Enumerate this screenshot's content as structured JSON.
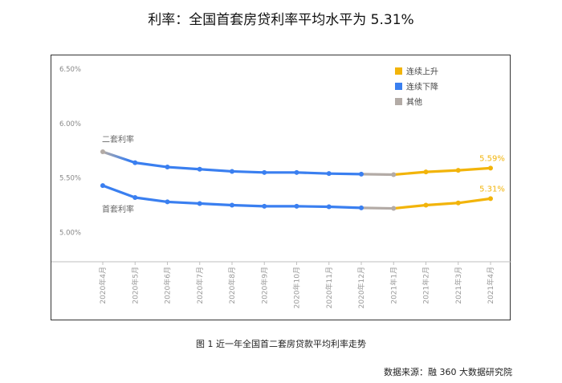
{
  "header": {
    "title": "利率：全国首套房贷利率平均水平为 5.31%"
  },
  "caption": "图 1  近一年全国首二套房贷款平均利率走势",
  "source": "数据来源：融 360 大数据研究院",
  "colors": {
    "rising": "#f2b40a",
    "falling": "#3a7ff0",
    "other": "#b3aba6"
  },
  "chart_data": {
    "type": "line",
    "title": "利率：全国首套房贷利率平均水平为 5.31%",
    "categories": [
      "2020年4月",
      "2020年5月",
      "2020年6月",
      "2020年7月",
      "2020年8月",
      "2020年9月",
      "2020年10月",
      "2020年11月",
      "2020年12月",
      "2021年1月",
      "2021年2月",
      "2021年3月",
      "2021年4月"
    ],
    "y_ticks": [
      "6.50%",
      "6.00%",
      "5.50%",
      "5.00%"
    ],
    "ylim": [
      4.73,
      6.5
    ],
    "series": [
      {
        "name": "二套利率",
        "values": [
          5.74,
          5.64,
          5.6,
          5.58,
          5.56,
          5.55,
          5.55,
          5.54,
          5.535,
          5.53,
          5.555,
          5.57,
          5.59
        ],
        "end_label": "5.59%"
      },
      {
        "name": "首套利率",
        "values": [
          5.43,
          5.32,
          5.28,
          5.265,
          5.25,
          5.24,
          5.24,
          5.235,
          5.225,
          5.22,
          5.25,
          5.27,
          5.31
        ],
        "end_label": "5.31%"
      }
    ],
    "segment_status": [
      "falling",
      "falling",
      "falling",
      "falling",
      "falling",
      "falling",
      "falling",
      "falling",
      "other",
      "rising",
      "rising",
      "rising"
    ],
    "legend": {
      "position": "top-right",
      "items": [
        {
          "label": "连续上升",
          "status": "rising"
        },
        {
          "label": "连续下降",
          "status": "falling"
        },
        {
          "label": "其他",
          "status": "other"
        }
      ]
    }
  }
}
